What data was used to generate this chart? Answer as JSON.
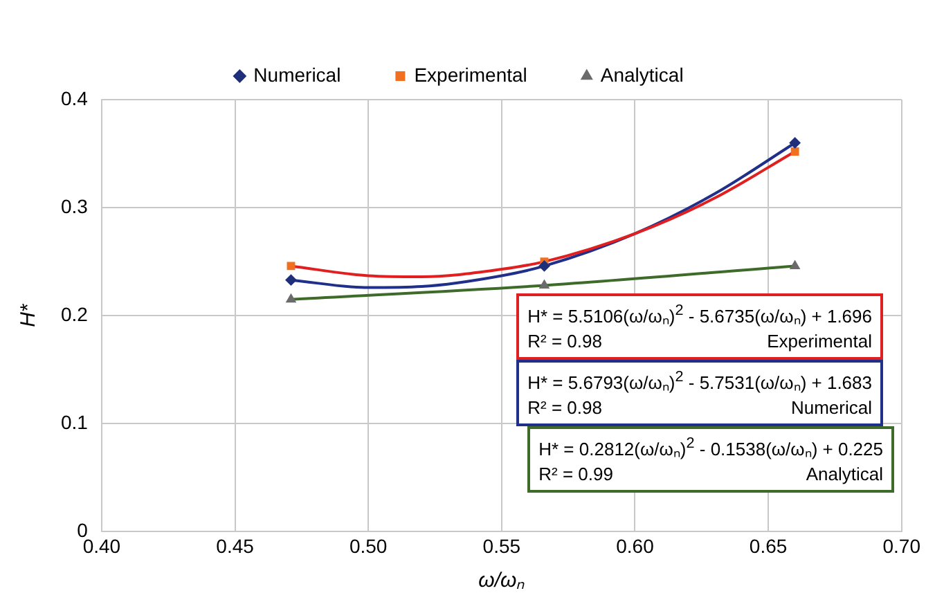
{
  "chart_data": {
    "type": "scatter",
    "xlabel": "ω/ωₙ",
    "ylabel": "H*",
    "xlim": [
      0.4,
      0.7
    ],
    "xticks": [
      {
        "value": 0.4,
        "label": "0.40"
      },
      {
        "value": 0.45,
        "label": "0.45"
      },
      {
        "value": 0.5,
        "label": "0.50"
      },
      {
        "value": 0.55,
        "label": "0.55"
      },
      {
        "value": 0.6,
        "label": "0.60"
      },
      {
        "value": 0.65,
        "label": "0.65"
      },
      {
        "value": 0.7,
        "label": "0.70"
      }
    ],
    "ylim": [
      0,
      0.4
    ],
    "yticks": [
      0,
      0.1,
      0.2,
      0.3,
      0.4
    ],
    "grid": true,
    "legend": "top",
    "series": [
      {
        "name": "Numerical",
        "type": "scatter",
        "marker": "diamond",
        "color": "#1f2f7a",
        "x": [
          0.471,
          0.566,
          0.66
        ],
        "values": [
          0.233,
          0.246,
          0.36
        ]
      },
      {
        "name": "Experimental",
        "type": "scatter",
        "marker": "square",
        "color": "#f07020",
        "x": [
          0.471,
          0.566,
          0.66
        ],
        "values": [
          0.246,
          0.25,
          0.352
        ]
      },
      {
        "name": "Analytical",
        "type": "scatter",
        "marker": "triangle",
        "color": "#6b6b6b",
        "x": [
          0.471,
          0.566,
          0.66
        ],
        "values": [
          0.215,
          0.228,
          0.246
        ]
      },
      {
        "type": "line",
        "marker": "none",
        "color": "#e02020",
        "x": [
          0.471,
          0.5,
          0.52,
          0.55,
          0.566,
          0.6,
          0.63,
          0.66
        ],
        "values": [
          0.246,
          0.237,
          0.236,
          0.243,
          0.25,
          0.276,
          0.309,
          0.352
        ]
      },
      {
        "type": "line",
        "marker": "none",
        "color": "#1f2f8a",
        "x": [
          0.471,
          0.5,
          0.52,
          0.55,
          0.566,
          0.6,
          0.63,
          0.66
        ],
        "values": [
          0.233,
          0.226,
          0.227,
          0.237,
          0.246,
          0.276,
          0.313,
          0.36
        ]
      },
      {
        "type": "line",
        "marker": "none",
        "color": "#3e6b2a",
        "x": [
          0.471,
          0.566,
          0.66
        ],
        "values": [
          0.215,
          0.228,
          0.246
        ]
      }
    ],
    "annotations": [
      "H* = 5.5106(ω/ωₙ)$^{2}$  - 5.6735(ω/ωₙ)  + 1.696",
      "R² = 0.98",
      "Experimental",
      "H* = 5.6793(ω/ωₙ)$^{2}$  - 5.7531(ω/ωₙ)  + 1.683",
      "R² = 0.98",
      "Numerical",
      "H* = 0.2812(ω/ωₙ)$^{2}$ - 0.1538(ω/ωₙ)  + 0.225",
      "R² = 0.99",
      "Analytical"
    ]
  }
}
